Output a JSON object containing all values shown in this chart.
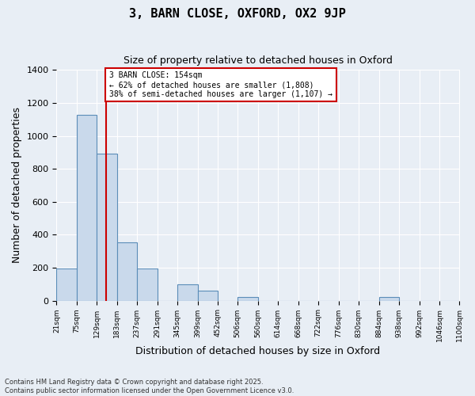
{
  "title1": "3, BARN CLOSE, OXFORD, OX2 9JP",
  "title2": "Size of property relative to detached houses in Oxford",
  "xlabel": "Distribution of detached houses by size in Oxford",
  "ylabel": "Number of detached properties",
  "property_size": 154,
  "property_label": "3 BARN CLOSE: 154sqm",
  "annotation_line1": "← 62% of detached houses are smaller (1,808)",
  "annotation_line2": "38% of semi-detached houses are larger (1,107) →",
  "bar_edges": [
    21,
    75,
    129,
    183,
    237,
    291,
    345,
    399,
    452,
    506,
    560,
    614,
    668,
    722,
    776,
    830,
    884,
    938,
    992,
    1046,
    1100
  ],
  "bar_heights": [
    193,
    1128,
    893,
    352,
    196,
    0,
    100,
    60,
    0,
    21,
    0,
    0,
    0,
    0,
    0,
    0,
    21,
    0,
    0,
    0
  ],
  "bar_color": "#c9d9eb",
  "bar_edgecolor": "#5b8db8",
  "background_color": "#e8eef5",
  "grid_color": "#ffffff",
  "vline_color": "#cc0000",
  "annotation_box_color": "#cc0000",
  "ylim": [
    0,
    1400
  ],
  "yticks": [
    0,
    200,
    400,
    600,
    800,
    1000,
    1200,
    1400
  ],
  "footer_line1": "Contains HM Land Registry data © Crown copyright and database right 2025.",
  "footer_line2": "Contains public sector information licensed under the Open Government Licence v3.0."
}
